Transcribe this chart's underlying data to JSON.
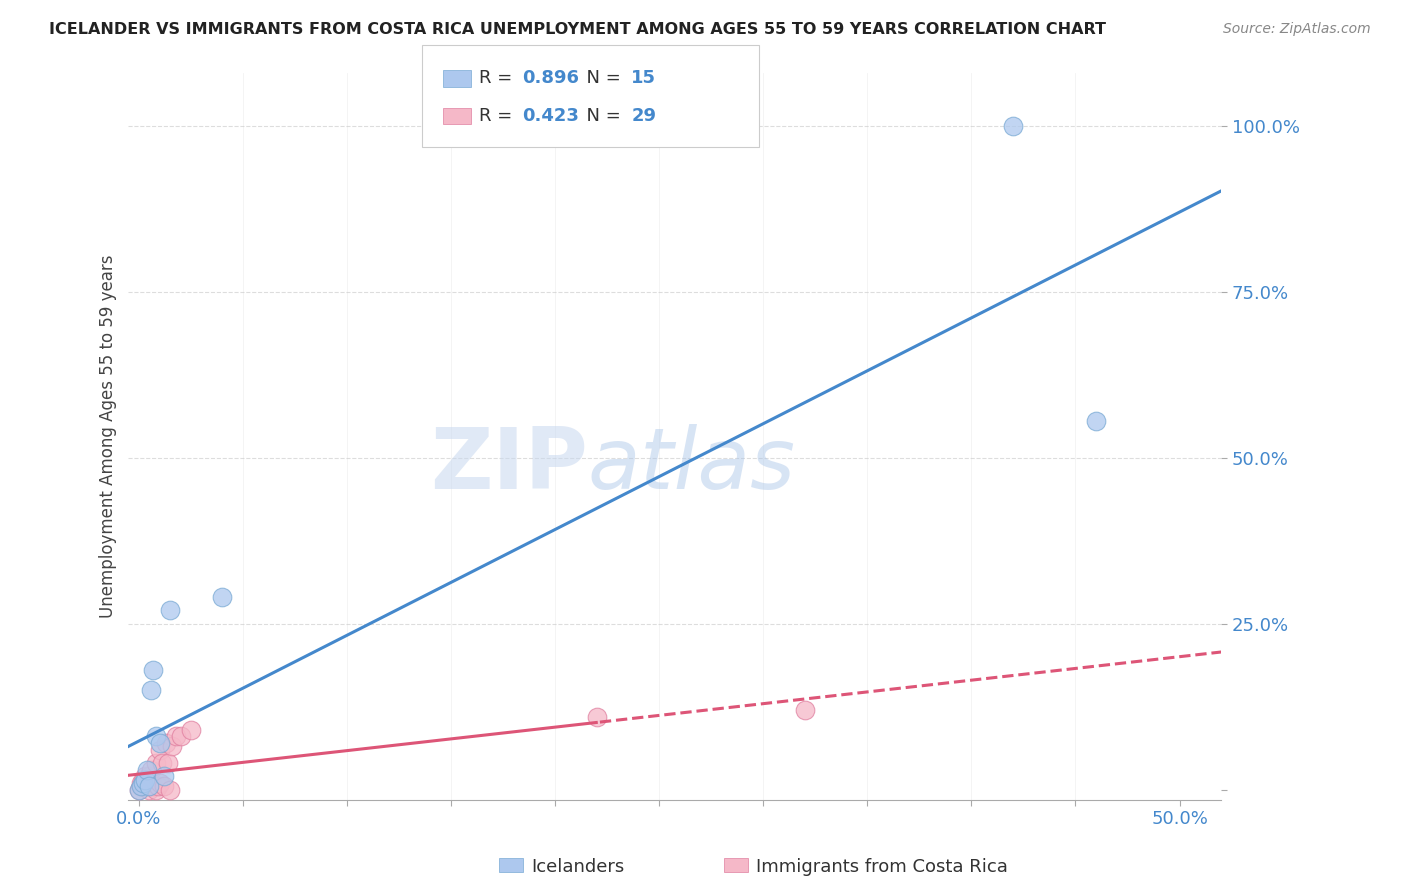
{
  "title": "ICELANDER VS IMMIGRANTS FROM COSTA RICA UNEMPLOYMENT AMONG AGES 55 TO 59 YEARS CORRELATION CHART",
  "source": "Source: ZipAtlas.com",
  "ylabel": "Unemployment Among Ages 55 to 59 years",
  "xlim": [
    -0.005,
    0.52
  ],
  "ylim": [
    -0.015,
    1.08
  ],
  "xlabel_ticks": [
    "0.0%",
    "",
    "",
    "",
    "",
    "",
    "",
    "",
    "",
    "",
    "50.0%"
  ],
  "xlabel_vals": [
    0.0,
    0.05,
    0.1,
    0.15,
    0.2,
    0.25,
    0.3,
    0.35,
    0.4,
    0.45,
    0.5
  ],
  "ylabel_vals_right": [
    0.0,
    0.25,
    0.5,
    0.75,
    1.0
  ],
  "ylabel_ticks_right": [
    "",
    "25.0%",
    "50.0%",
    "75.0%",
    "100.0%"
  ],
  "icelanders": {
    "R": 0.896,
    "N": 15,
    "scatter_color": "#adc8ee",
    "edge_color": "#7aaad4",
    "line_color": "#4488cc",
    "x": [
      0.0,
      0.001,
      0.002,
      0.003,
      0.004,
      0.005,
      0.006,
      0.007,
      0.008,
      0.01,
      0.012,
      0.015,
      0.04,
      0.42,
      0.46
    ],
    "y": [
      0.0,
      0.005,
      0.01,
      0.015,
      0.03,
      0.005,
      0.15,
      0.18,
      0.08,
      0.07,
      0.02,
      0.27,
      0.29,
      1.0,
      0.555
    ]
  },
  "costa_rica": {
    "R": 0.423,
    "N": 29,
    "scatter_color": "#f5b8c8",
    "edge_color": "#e080a0",
    "line_color": "#dd5577",
    "x": [
      0.0,
      0.001,
      0.001,
      0.002,
      0.002,
      0.003,
      0.003,
      0.004,
      0.005,
      0.005,
      0.006,
      0.006,
      0.007,
      0.008,
      0.008,
      0.009,
      0.01,
      0.01,
      0.011,
      0.012,
      0.013,
      0.014,
      0.015,
      0.016,
      0.018,
      0.02,
      0.025,
      0.22,
      0.32
    ],
    "y": [
      0.0,
      0.005,
      0.01,
      0.005,
      0.015,
      0.01,
      0.02,
      0.005,
      0.0,
      0.02,
      0.01,
      0.03,
      0.005,
      0.0,
      0.04,
      0.005,
      0.06,
      0.01,
      0.04,
      0.005,
      0.07,
      0.04,
      0.0,
      0.065,
      0.08,
      0.08,
      0.09,
      0.11,
      0.12
    ]
  },
  "watermark_zip": "ZIP",
  "watermark_atlas": "atlas",
  "background_color": "#ffffff",
  "grid_color": "#dddddd",
  "title_color": "#222222",
  "axis_label_color": "#444444",
  "tick_color_blue": "#4488cc",
  "right_tick_labels": [
    "",
    "25.0%",
    "50.0%",
    "75.0%",
    "100.0%"
  ]
}
